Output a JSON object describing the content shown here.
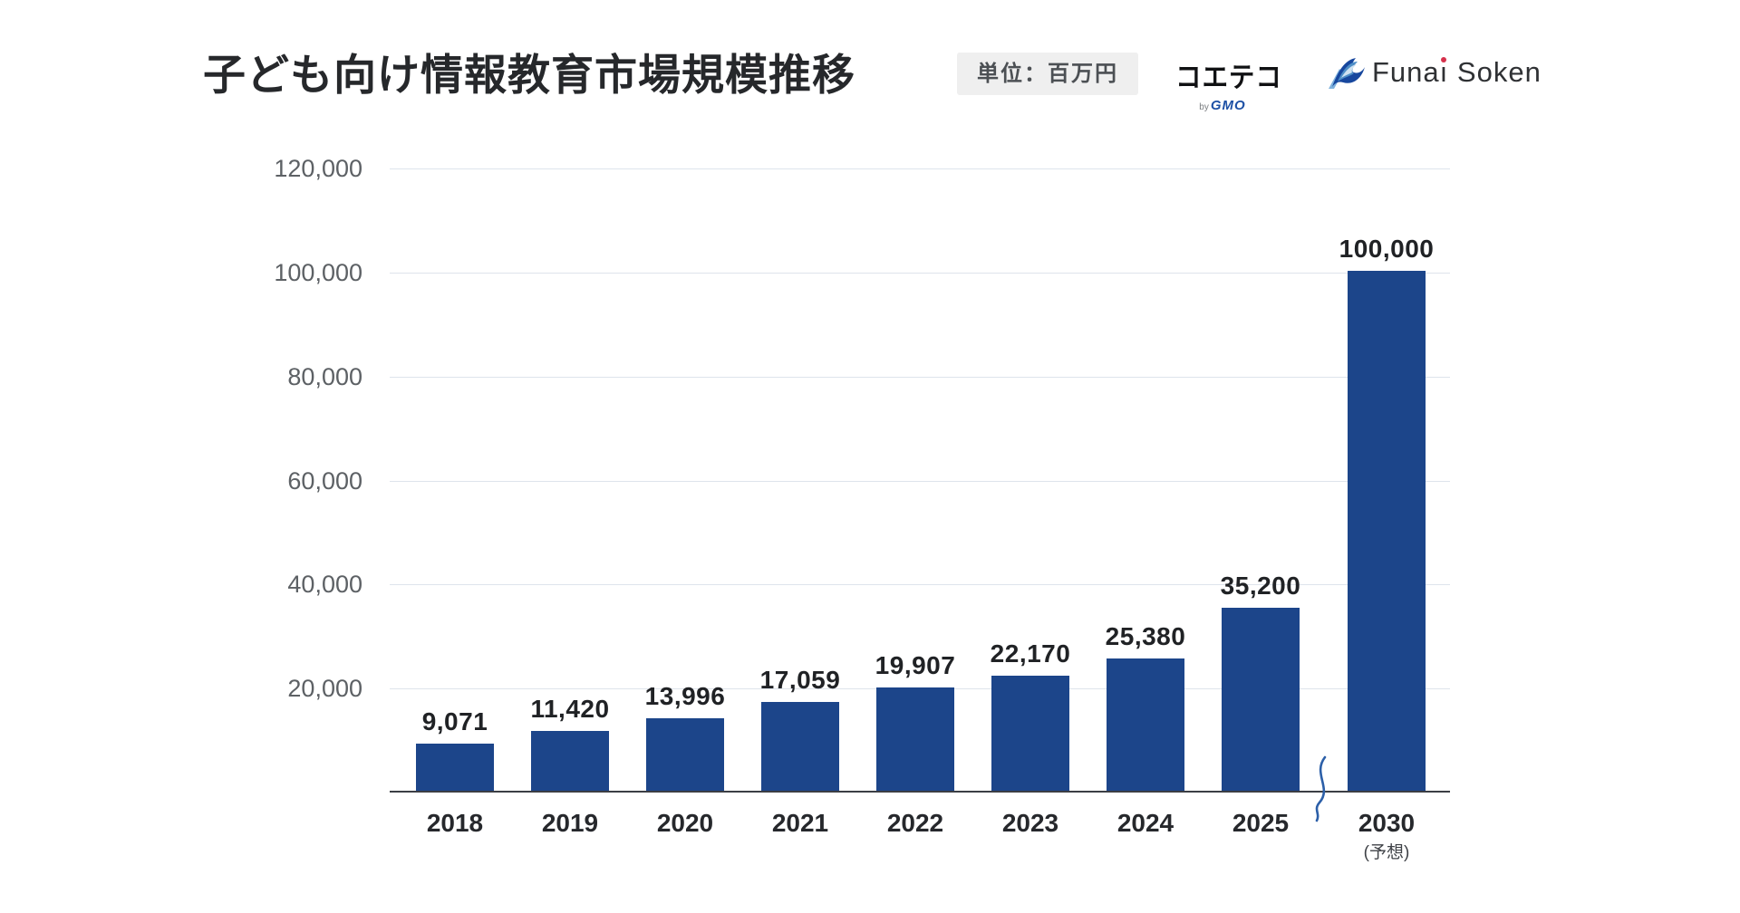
{
  "header": {
    "title": "子ども向け情報教育市場規模推移",
    "unit_badge": "単位：百万円",
    "logos": {
      "coeteco": {
        "name": "コエテコ",
        "by": "by",
        "gmo": "GMO"
      },
      "funai": {
        "pre": "Funa",
        "i": "ı",
        "post": " Soken"
      }
    }
  },
  "chart_data": {
    "type": "bar",
    "title": "子ども向け情報教育市場規模推移",
    "unit": "百万円",
    "categories": [
      "2018",
      "2019",
      "2020",
      "2021",
      "2022",
      "2023",
      "2024",
      "2025",
      "2030"
    ],
    "values": [
      9071,
      11420,
      13996,
      17059,
      19907,
      22170,
      25380,
      35200,
      100000
    ],
    "value_labels": [
      "9,071",
      "11,420",
      "13,996",
      "17,059",
      "19,907",
      "22,170",
      "25,380",
      "35,200",
      "100,000"
    ],
    "last_category_note": "(予想)",
    "ylim": [
      0,
      120000
    ],
    "yticks": [
      20000,
      40000,
      60000,
      80000,
      100000,
      120000
    ],
    "ytick_labels": [
      "20,000",
      "40,000",
      "60,000",
      "80,000",
      "100,000",
      "120,000"
    ],
    "grid": true,
    "legend": "none",
    "axis_break_before_last": true,
    "bar_color": "#1C458A"
  },
  "colors": {
    "bar": "#1C458A",
    "gridline": "#DEE4EC",
    "axis_line": "#3B3E44",
    "title_text": "#26282B",
    "badge_bg": "#EFEFEF",
    "gmo_blue": "#1D50A5",
    "squiggle_blue": "#2C5FA8",
    "funai_dot_red": "#D6304B"
  }
}
